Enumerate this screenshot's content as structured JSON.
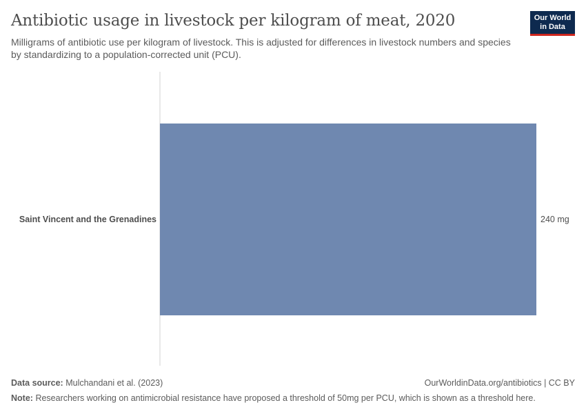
{
  "header": {
    "title": "Antibiotic usage in livestock per kilogram of meat, 2020",
    "subtitle": "Milligrams of antibiotic use per kilogram of livestock. This is adjusted for differences in livestock numbers and species by standardizing to a population-corrected unit (PCU)."
  },
  "logo": {
    "line1": "Our World",
    "line2": "in Data",
    "bg_color": "#0e2a4f",
    "accent_color": "#ce261e"
  },
  "chart_data": {
    "type": "bar",
    "orientation": "horizontal",
    "categories": [
      "Saint Vincent and the Grenadines"
    ],
    "values": [
      240
    ],
    "value_labels": [
      "240 mg"
    ],
    "unit": "mg",
    "bar_color": "#6f88b0",
    "xlim": [
      0,
      240
    ],
    "title": "Antibiotic usage in livestock per kilogram of meat, 2020",
    "xlabel": "",
    "ylabel": ""
  },
  "footer": {
    "source_label": "Data source:",
    "source_value": "Mulchandani et al. (2023)",
    "attribution": "OurWorldinData.org/antibiotics | CC BY",
    "note_label": "Note:",
    "note_value": "Researchers working on antimicrobial resistance have proposed a threshold of 50mg per PCU, which is shown as a threshold here."
  }
}
